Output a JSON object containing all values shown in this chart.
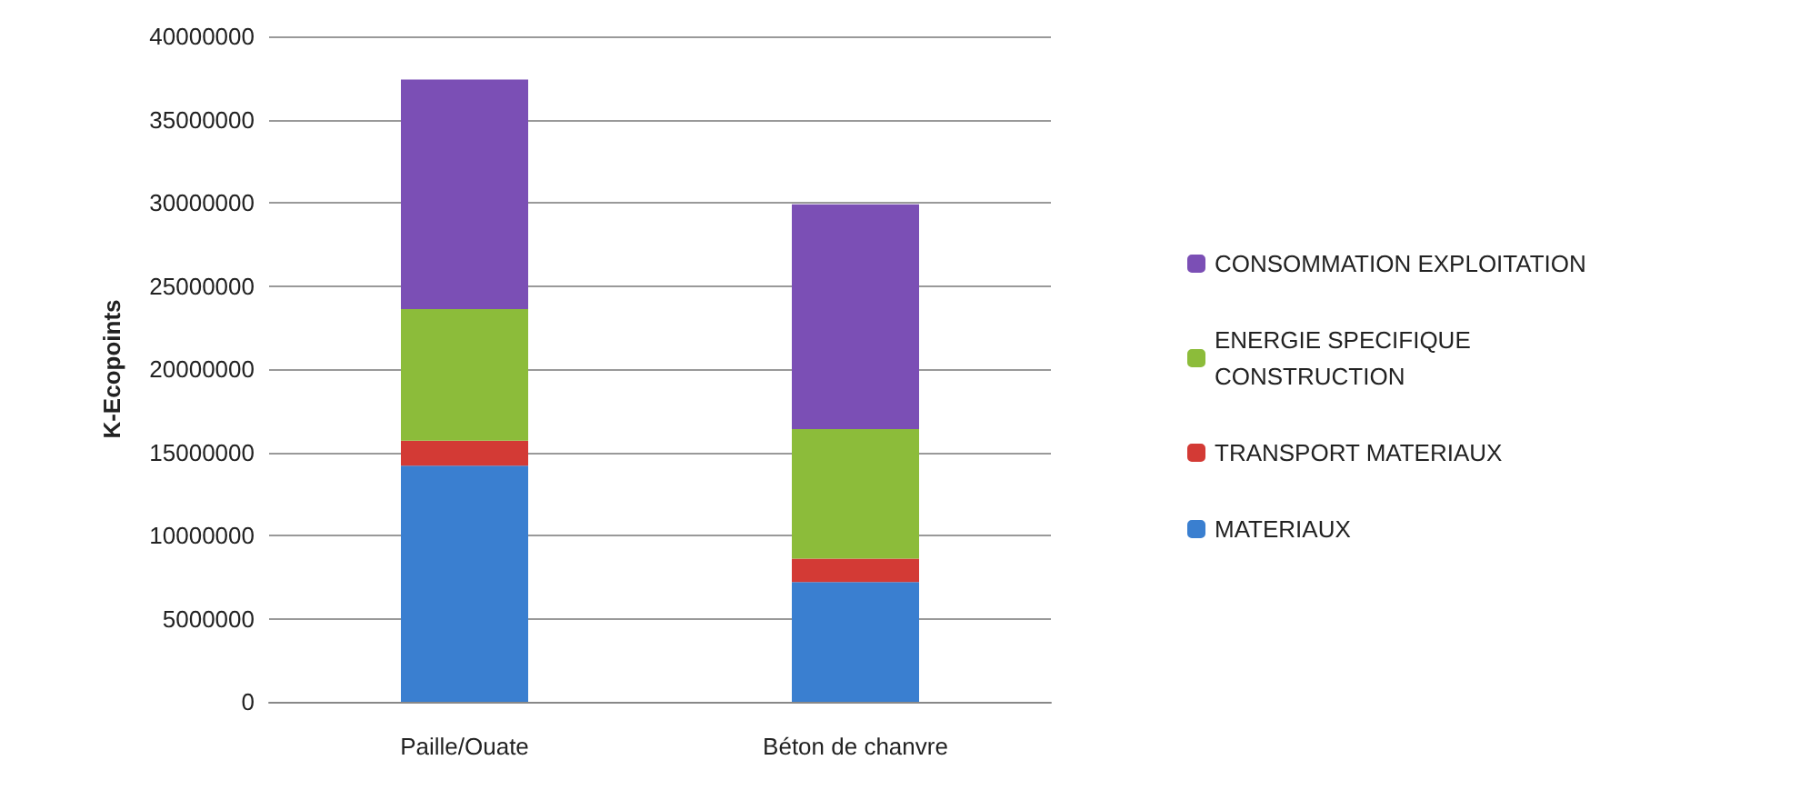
{
  "chart_data": {
    "type": "bar",
    "ylabel": "K-Ecopoints",
    "stacked": true,
    "categories": [
      "Paille/Ouate",
      "Béton de chanvre"
    ],
    "series": [
      {
        "name": "MATERIAUX",
        "color": "#3a7fd0",
        "values": [
          14200000,
          7200000
        ]
      },
      {
        "name": "TRANSPORT MATERIAUX",
        "color": "#d33a35",
        "values": [
          1500000,
          1400000
        ]
      },
      {
        "name": "ENERGIE SPECIFIQUE CONSTRUCTION",
        "color": "#8cbc3a",
        "values": [
          7900000,
          7800000
        ]
      },
      {
        "name": "CONSOMMATION EXPLOITATION",
        "color": "#7b4fb5",
        "values": [
          13800000,
          13500000
        ]
      }
    ],
    "ylim": [
      0,
      40000000
    ],
    "yticks": [
      0,
      5000000,
      10000000,
      15000000,
      20000000,
      25000000,
      30000000,
      35000000,
      40000000
    ],
    "grid": "y",
    "legend": "right"
  }
}
